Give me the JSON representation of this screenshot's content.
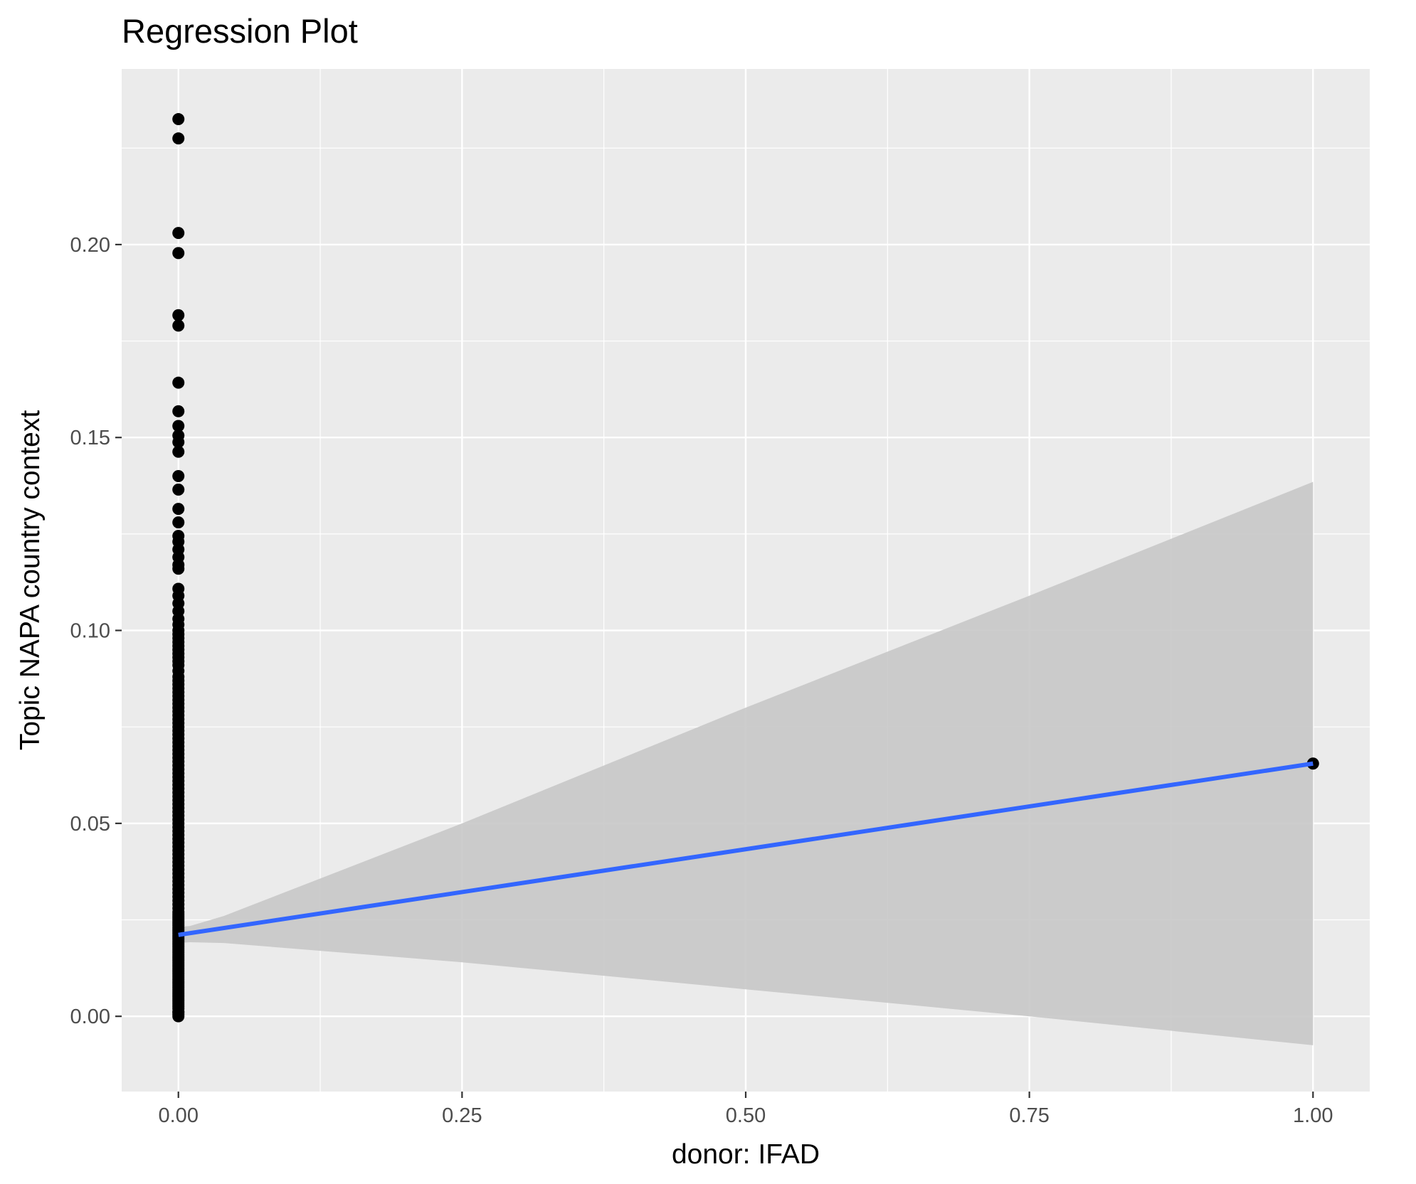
{
  "chart_data": {
    "type": "scatter",
    "title": "Regression Plot",
    "xlabel": "donor: IFAD",
    "ylabel": "Topic NAPA country context",
    "xlim": [
      -0.05,
      1.05
    ],
    "ylim": [
      -0.0195,
      0.2455
    ],
    "x_ticks": [
      0.0,
      0.25,
      0.5,
      0.75,
      1.0
    ],
    "x_tick_labels": [
      "0.00",
      "0.25",
      "0.50",
      "0.75",
      "1.00"
    ],
    "y_ticks": [
      0.0,
      0.05,
      0.1,
      0.15,
      0.2
    ],
    "y_tick_labels": [
      "0.00",
      "0.05",
      "0.10",
      "0.15",
      "0.20"
    ],
    "grid": true,
    "legend": "none",
    "background_color": "#ebebeb",
    "point_color": "#000000",
    "line_color": "#3366ff",
    "ribbon_color": "#c8c8c8",
    "points": {
      "x": [
        0,
        0,
        0,
        0,
        0,
        0,
        0,
        0,
        0,
        0,
        0,
        0,
        0,
        0,
        0,
        0,
        0,
        0,
        0,
        0,
        0,
        0,
        0,
        0,
        0,
        0,
        0,
        0,
        0,
        0,
        0,
        0,
        0,
        0,
        0,
        0,
        0,
        0,
        0,
        0,
        0,
        0,
        0,
        0,
        0,
        0,
        0,
        0,
        0,
        0,
        0,
        0,
        0,
        0,
        0,
        0,
        0,
        0,
        0,
        0,
        0,
        0,
        0,
        0,
        0,
        0,
        0,
        0,
        0,
        0,
        0,
        0,
        0,
        0,
        0,
        0,
        0,
        0,
        0,
        0,
        0,
        0,
        0,
        0,
        0,
        0,
        0,
        0,
        0,
        0,
        0,
        0,
        0,
        0,
        0,
        0,
        0,
        0,
        0,
        0,
        0,
        0,
        0,
        0,
        0,
        0,
        0,
        0,
        0,
        0,
        0,
        0,
        0,
        0,
        0,
        0,
        0,
        0,
        0,
        0,
        0,
        0,
        0,
        0,
        0,
        0,
        0,
        0,
        0,
        0,
        0,
        0,
        0,
        0,
        0,
        0,
        0,
        0,
        0,
        0,
        0,
        0,
        0,
        0,
        0,
        0,
        0,
        0,
        0,
        0,
        0,
        0,
        0,
        0,
        0,
        1
      ],
      "y": [
        0.2325,
        0.2275,
        0.203,
        0.1978,
        0.1817,
        0.179,
        0.1642,
        0.1568,
        0.153,
        0.1505,
        0.1488,
        0.1463,
        0.14,
        0.1365,
        0.1315,
        0.128,
        0.1245,
        0.123,
        0.121,
        0.119,
        0.117,
        0.116,
        0.1108,
        0.109,
        0.107,
        0.105,
        0.103,
        0.1015,
        0.1,
        0.099,
        0.098,
        0.097,
        0.096,
        0.095,
        0.094,
        0.093,
        0.092,
        0.091,
        0.0895,
        0.088,
        0.087,
        0.086,
        0.085,
        0.084,
        0.083,
        0.082,
        0.081,
        0.08,
        0.079,
        0.078,
        0.077,
        0.076,
        0.075,
        0.074,
        0.073,
        0.072,
        0.071,
        0.07,
        0.069,
        0.068,
        0.067,
        0.066,
        0.065,
        0.064,
        0.063,
        0.062,
        0.061,
        0.06,
        0.059,
        0.058,
        0.057,
        0.056,
        0.055,
        0.054,
        0.053,
        0.052,
        0.051,
        0.05,
        0.049,
        0.048,
        0.047,
        0.046,
        0.045,
        0.044,
        0.043,
        0.042,
        0.041,
        0.04,
        0.039,
        0.038,
        0.037,
        0.036,
        0.035,
        0.034,
        0.033,
        0.032,
        0.031,
        0.03,
        0.029,
        0.028,
        0.027,
        0.026,
        0.025,
        0.024,
        0.023,
        0.022,
        0.021,
        0.02,
        0.019,
        0.018,
        0.017,
        0.016,
        0.015,
        0.014,
        0.013,
        0.012,
        0.011,
        0.01,
        0.009,
        0.008,
        0.007,
        0.006,
        0.005,
        0.004,
        0.003,
        0.002,
        0.001,
        0.0005,
        0.0,
        0.0012,
        0.0025,
        0.0035,
        0.0045,
        0.0055,
        0.0065,
        0.0075,
        0.0085,
        0.0095,
        0.0105,
        0.0115,
        0.0125,
        0.0135,
        0.0145,
        0.0155,
        0.0165,
        0.0175,
        0.0185,
        0.0195,
        0.0205,
        0.0215,
        0.0225,
        0.0235,
        0.0245,
        0.0255,
        0.0265,
        0.0655
      ]
    },
    "regression": {
      "x": [
        0.0,
        1.0
      ],
      "y": [
        0.0211,
        0.0655
      ]
    },
    "confidence_band": {
      "x": [
        0.0,
        0.01,
        0.04,
        0.25,
        0.5,
        0.75,
        1.0
      ],
      "lower": [
        0.019,
        0.0192,
        0.019,
        0.014,
        0.007,
        0.0,
        -0.0075
      ],
      "upper": [
        0.0232,
        0.0234,
        0.026,
        0.05,
        0.08,
        0.109,
        0.1385
      ]
    }
  }
}
